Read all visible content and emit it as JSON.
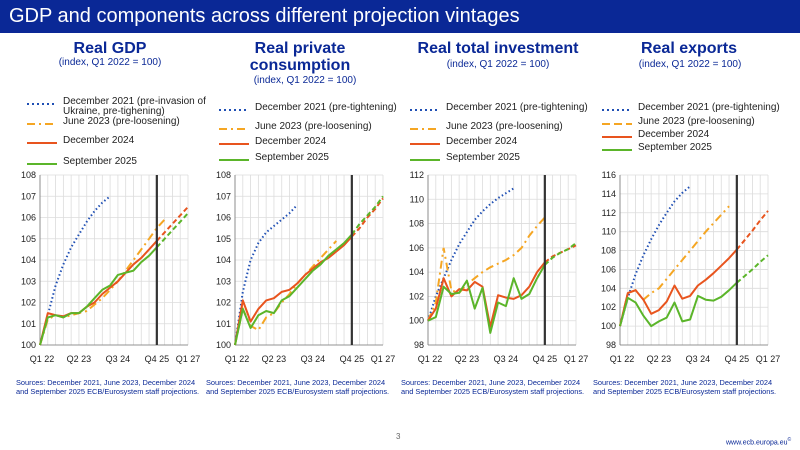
{
  "header": {
    "title": "GDP and components across different projection vintages"
  },
  "footer": {
    "page_number": "3",
    "website": "www.ecb.europa.eu",
    "website_mark": "©"
  },
  "colors": {
    "header_bg": "#0a2896",
    "blue": "#1f4fb4",
    "orange": "#f5a623",
    "red": "#e8541e",
    "green": "#5bb52a"
  },
  "chart_data": [
    {
      "type": "line",
      "title": "Real GDP",
      "subtitle": "(index, Q1 2022 = 100)",
      "x_labels": [
        "Q1 22",
        "Q2 23",
        "Q3 24",
        "Q4 25",
        "Q1 27"
      ],
      "ylim": [
        100,
        108
      ],
      "yticks": [
        100,
        101,
        102,
        103,
        104,
        105,
        106,
        107,
        108
      ],
      "grid": true,
      "series": [
        {
          "name": "December 2021 (pre-invasion of Ukraine, pre-tighening)",
          "style": "dotted",
          "color": "#1f4fb4",
          "values": [
            100,
            101.4,
            102.8,
            103.8,
            104.6,
            105.2,
            105.8,
            106.3,
            106.7,
            107.0
          ]
        },
        {
          "name": "June 2023 (pre-loosening)",
          "style": "dashdot",
          "color": "#f5a623",
          "values": [
            100,
            101.2,
            101.4,
            101.3,
            101.4,
            101.5,
            101.6,
            101.9,
            102.2,
            102.6,
            103.0,
            103.5,
            104.0,
            104.5,
            105.0,
            105.5,
            105.9
          ]
        },
        {
          "name": "December 2024",
          "style": "dashed-future",
          "color": "#e8541e",
          "values": [
            100,
            101.5,
            101.4,
            101.35,
            101.5,
            101.5,
            101.8,
            102.0,
            102.4,
            102.7,
            103.0,
            103.4,
            103.8,
            104.1,
            104.5,
            104.9,
            105.3,
            105.7,
            106.1,
            106.5
          ]
        },
        {
          "name": "September 2025",
          "style": "dashed-future",
          "color": "#5bb52a",
          "values": [
            100,
            101.3,
            101.4,
            101.3,
            101.5,
            101.5,
            101.8,
            102.2,
            102.6,
            102.8,
            103.3,
            103.4,
            103.5,
            103.9,
            104.2,
            104.6,
            105.0,
            105.4,
            105.8,
            106.2
          ]
        }
      ],
      "source": "Sources: December 2021, June 2023, December 2024 and September 2025 ECB/Eurosystem staff projections."
    },
    {
      "type": "line",
      "title": "Real private consumption",
      "subtitle": "(index, Q1 2022 = 100)",
      "x_labels": [
        "Q1 22",
        "Q2 23",
        "Q3 24",
        "Q4 25",
        "Q1 27"
      ],
      "ylim": [
        100,
        108
      ],
      "yticks": [
        100,
        101,
        102,
        103,
        104,
        105,
        106,
        107,
        108
      ],
      "grid": true,
      "series": [
        {
          "name": "December 2021 (pre-tightening)",
          "style": "dotted",
          "color": "#1f4fb4",
          "values": [
            100,
            102.5,
            104.0,
            104.8,
            105.3,
            105.6,
            105.9,
            106.2,
            106.6
          ]
        },
        {
          "name": "June 2023 (pre-loosening)",
          "style": "dashdot",
          "color": "#f5a623",
          "values": [
            100,
            101.7,
            100.9,
            100.7,
            101.3,
            101.5,
            102.0,
            102.4,
            102.9,
            103.3,
            103.7,
            104.1,
            104.5,
            104.9
          ]
        },
        {
          "name": "December 2024",
          "style": "dashed-future",
          "color": "#e8541e",
          "values": [
            100,
            102.1,
            101.1,
            101.7,
            102.1,
            102.2,
            102.5,
            102.6,
            102.9,
            103.3,
            103.6,
            103.9,
            104.1,
            104.4,
            104.7,
            105.1,
            105.5,
            106.0,
            106.4,
            106.9
          ]
        },
        {
          "name": "September 2025",
          "style": "dashed-future",
          "color": "#5bb52a",
          "values": [
            100,
            101.7,
            100.8,
            101.4,
            101.6,
            101.5,
            102.1,
            102.3,
            102.7,
            103.1,
            103.5,
            103.8,
            104.2,
            104.5,
            104.8,
            105.2,
            105.7,
            106.1,
            106.5,
            107.0
          ]
        }
      ],
      "source": "Sources: December 2021, June 2023, December 2024 and September 2025 ECB/Eurosystem staff projections."
    },
    {
      "type": "line",
      "title": "Real total investment",
      "subtitle": "(index, Q1 2022 = 100)",
      "x_labels": [
        "Q1 22",
        "Q2 23",
        "Q3 24",
        "Q4 25",
        "Q1 27"
      ],
      "ylim": [
        98,
        112
      ],
      "yticks": [
        98,
        100,
        102,
        104,
        106,
        108,
        110,
        112
      ],
      "grid": true,
      "series": [
        {
          "name": "December 2021 (pre-tightening)",
          "style": "dotted",
          "color": "#1f4fb4",
          "values": [
            100,
            102.0,
            103.5,
            105.0,
            106.3,
            107.3,
            108.3,
            109.0,
            109.6,
            110.1,
            110.5,
            110.9
          ]
        },
        {
          "name": "June 2023 (pre-loosening)",
          "style": "dashdot",
          "color": "#f5a623",
          "values": [
            100,
            101.5,
            106.0,
            102.5,
            102.3,
            103.0,
            103.5,
            104.0,
            104.4,
            104.7,
            105.0,
            105.4,
            106.0,
            107.0,
            107.8,
            108.5
          ]
        },
        {
          "name": "December 2024",
          "style": "dashed-future",
          "color": "#e8541e",
          "values": [
            100,
            101.0,
            103.5,
            102.0,
            102.6,
            102.5,
            103.2,
            102.8,
            99.5,
            102.1,
            101.9,
            101.8,
            102.1,
            102.8,
            104.0,
            104.8,
            105.3,
            105.6,
            105.9,
            106.2
          ]
        },
        {
          "name": "September 2025",
          "style": "dashed-future",
          "color": "#5bb52a",
          "values": [
            100,
            100.3,
            102.8,
            102.2,
            102.3,
            103.3,
            101.0,
            102.7,
            99.0,
            101.5,
            101.2,
            103.5,
            101.8,
            102.2,
            103.5,
            104.6,
            105.2,
            105.6,
            105.9,
            106.4
          ]
        }
      ],
      "source": "Sources: December 2021, June 2023, December 2024 and September 2025 ECB/Eurosystem staff projections."
    },
    {
      "type": "line",
      "title": "Real exports",
      "subtitle": "(index, Q1 2022 = 100)",
      "x_labels": [
        "Q1 22",
        "Q2 23",
        "Q3 24",
        "Q4 25",
        "Q1 27"
      ],
      "ylim": [
        98,
        116
      ],
      "yticks": [
        98,
        100,
        102,
        104,
        106,
        108,
        110,
        112,
        114,
        116
      ],
      "grid": true,
      "series": [
        {
          "name": "December 2021 (pre-tightening)",
          "style": "dotted",
          "color": "#1f4fb4",
          "values": [
            100,
            103.0,
            105.5,
            107.5,
            109.2,
            110.7,
            112.0,
            113.2,
            114.1,
            114.8
          ]
        },
        {
          "name": "June 2023 (pre-loosening)",
          "style": "dashdot",
          "color": "#f5a623",
          "values": [
            100,
            103.5,
            103.8,
            102.8,
            103.5,
            104.0,
            105.0,
            106.0,
            107.0,
            108.0,
            109.0,
            110.0,
            110.9,
            111.8,
            112.7
          ]
        },
        {
          "name": "December 2024",
          "style": "dashed-future",
          "color": "#e8541e",
          "values": [
            100,
            103.5,
            103.8,
            102.8,
            101.3,
            101.7,
            102.6,
            104.3,
            102.9,
            103.2,
            104.3,
            104.9,
            105.6,
            106.4,
            107.2,
            108.1,
            109.1,
            110.1,
            111.2,
            112.2
          ]
        },
        {
          "name": "September 2025",
          "style": "dashed-future",
          "color": "#5bb52a",
          "values": [
            100,
            103.0,
            102.5,
            101.1,
            100.0,
            100.5,
            100.9,
            102.5,
            100.5,
            100.7,
            103.2,
            102.8,
            102.7,
            103.1,
            103.8,
            104.6,
            105.3,
            106.0,
            106.8,
            107.5
          ]
        }
      ],
      "source": "Sources: December 2021, June 2023, December 2024 and September 2025 ECB/Eurosystem staff projections."
    }
  ]
}
